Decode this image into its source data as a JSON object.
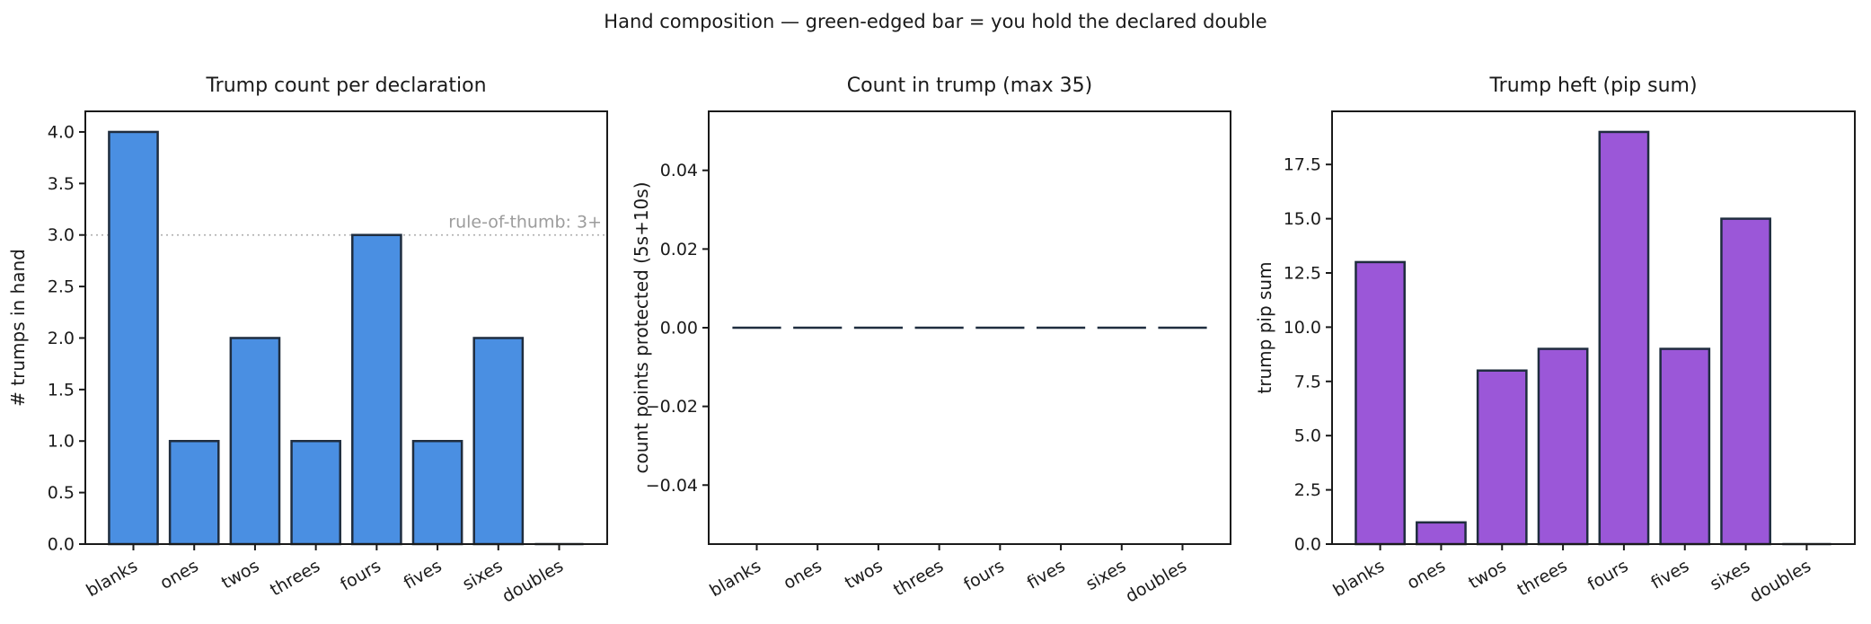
{
  "figure": {
    "title": "Hand composition — green-edged bar = you hold the declared double",
    "background": "#ffffff",
    "text_color": "#1a1a1a",
    "spine_color": "#1a1a1a"
  },
  "chart_data": [
    {
      "type": "bar",
      "title": "Trump count per declaration",
      "ylabel": "# trumps in hand",
      "xlabel": "",
      "categories": [
        "blanks",
        "ones",
        "twos",
        "threes",
        "fours",
        "fives",
        "sixes",
        "doubles"
      ],
      "values": [
        4,
        1,
        2,
        1,
        3,
        1,
        2,
        0
      ],
      "bar_color": "#4a8fe2",
      "edge_color": "#1f2d3f",
      "ylim": [
        0,
        4.2
      ],
      "yticks": [
        0.0,
        0.5,
        1.0,
        1.5,
        2.0,
        2.5,
        3.0,
        3.5,
        4.0
      ],
      "ytick_labels": [
        "0.0",
        "0.5",
        "1.0",
        "1.5",
        "2.0",
        "2.5",
        "3.0",
        "3.5",
        "4.0"
      ],
      "grid": false,
      "hline": {
        "y": 3,
        "style": "dotted",
        "color": "#b3b3b3",
        "label": "rule-of-thumb: 3+",
        "label_color": "#9c9c9c"
      }
    },
    {
      "type": "bar",
      "title": "Count in trump (max 35)",
      "ylabel": "count points protected (5s+10s)",
      "xlabel": "",
      "categories": [
        "blanks",
        "ones",
        "twos",
        "threes",
        "fours",
        "fives",
        "sixes",
        "doubles"
      ],
      "values": [
        0,
        0,
        0,
        0,
        0,
        0,
        0,
        0
      ],
      "bar_color": "#4a8fe2",
      "edge_color": "#1f2d3f",
      "ylim": [
        -0.055,
        0.055
      ],
      "yticks": [
        -0.04,
        -0.02,
        0.0,
        0.02,
        0.04
      ],
      "ytick_labels": [
        "−0.04",
        "−0.02",
        "0.00",
        "0.02",
        "0.04"
      ],
      "grid": false,
      "hline": null
    },
    {
      "type": "bar",
      "title": "Trump heft (pip sum)",
      "ylabel": "trump pip sum",
      "xlabel": "",
      "categories": [
        "blanks",
        "ones",
        "twos",
        "threes",
        "fours",
        "fives",
        "sixes",
        "doubles"
      ],
      "values": [
        13,
        1,
        8,
        9,
        19,
        9,
        15,
        0
      ],
      "bar_color": "#9b57d8",
      "edge_color": "#1f2d3f",
      "ylim": [
        0,
        19.95
      ],
      "yticks": [
        0.0,
        2.5,
        5.0,
        7.5,
        10.0,
        12.5,
        15.0,
        17.5
      ],
      "ytick_labels": [
        "0.0",
        "2.5",
        "5.0",
        "7.5",
        "10.0",
        "12.5",
        "15.0",
        "17.5"
      ],
      "grid": false,
      "hline": null
    }
  ]
}
